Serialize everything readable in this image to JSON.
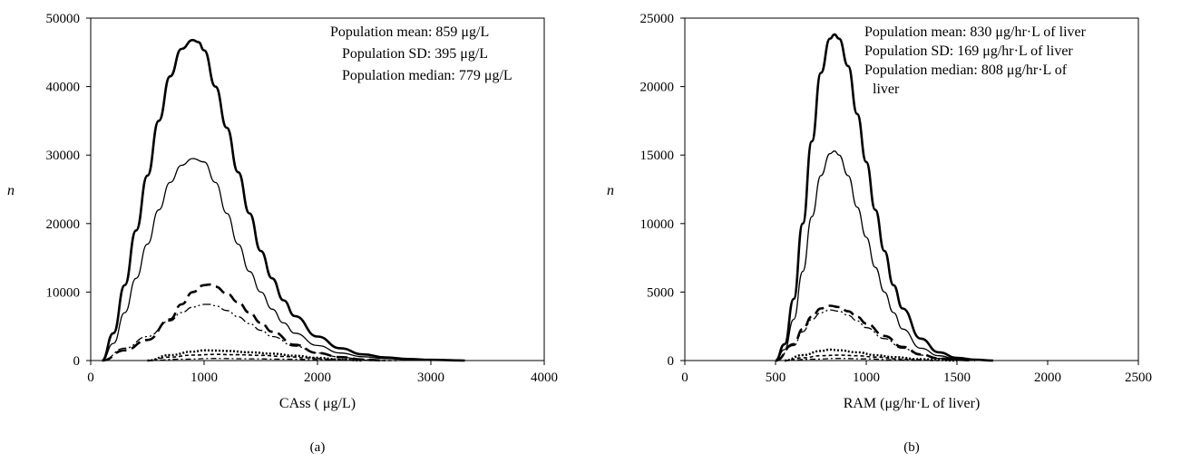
{
  "chart_data": [
    {
      "type": "line",
      "panel_label": "(a)",
      "xlabel": "CAss ( μg/L)",
      "ylabel": "n",
      "xlim": [
        0,
        4000
      ],
      "ylim": [
        0,
        50000
      ],
      "xticks": [
        "0",
        "1000",
        "2000",
        "3000",
        "4000"
      ],
      "yticks": [
        "0",
        "10000",
        "20000",
        "30000",
        "40000",
        "50000"
      ],
      "grid": false,
      "legend": "none",
      "annotations": [
        "Population mean: 859 μg/L",
        "Population SD: 395 μg/L",
        "Population median: 779 μg/L"
      ],
      "series": [
        {
          "style": "thick-solid",
          "x": [
            100,
            200,
            300,
            400,
            500,
            600,
            700,
            800,
            900,
            950,
            1000,
            1100,
            1200,
            1300,
            1400,
            1500,
            1600,
            1700,
            1800,
            2000,
            2200,
            2400,
            2600,
            2800,
            3000,
            3300
          ],
          "y": [
            0,
            4000,
            11000,
            19000,
            27000,
            35000,
            41500,
            45500,
            46800,
            46500,
            45300,
            40000,
            34000,
            27500,
            21500,
            16000,
            12000,
            8800,
            6500,
            3500,
            1800,
            900,
            450,
            220,
            100,
            0
          ]
        },
        {
          "style": "thin-solid",
          "x": [
            100,
            200,
            300,
            400,
            500,
            600,
            700,
            800,
            900,
            1000,
            1100,
            1200,
            1300,
            1400,
            1500,
            1600,
            1700,
            1800,
            2000,
            2200,
            2400,
            2600,
            2800,
            3000,
            3300
          ],
          "y": [
            0,
            2500,
            7000,
            12000,
            17000,
            22000,
            26000,
            28500,
            29500,
            29000,
            26000,
            21500,
            17000,
            13000,
            10000,
            7500,
            5500,
            4000,
            2200,
            1100,
            550,
            280,
            130,
            60,
            0
          ]
        },
        {
          "style": "thick-dash",
          "x": [
            100,
            300,
            500,
            700,
            800,
            900,
            1000,
            1050,
            1100,
            1200,
            1300,
            1400,
            1500,
            1600,
            1800,
            2000,
            2200,
            2400,
            2600
          ],
          "y": [
            0,
            1500,
            3000,
            6000,
            8200,
            10000,
            11000,
            11100,
            10800,
            9800,
            8500,
            7000,
            5500,
            4200,
            2300,
            1100,
            500,
            150,
            0
          ]
        },
        {
          "style": "dash-dot-dot",
          "x": [
            100,
            300,
            500,
            700,
            800,
            900,
            1000,
            1050,
            1100,
            1200,
            1300,
            1400,
            1500,
            1600,
            1800,
            2000,
            2200,
            2400,
            2600
          ],
          "y": [
            0,
            1800,
            3500,
            5800,
            7000,
            7800,
            8200,
            8200,
            8000,
            7300,
            6400,
            5400,
            4400,
            3500,
            2100,
            1100,
            500,
            150,
            0
          ]
        },
        {
          "style": "dense-dot",
          "x": [
            500,
            700,
            900,
            1000,
            1100,
            1200,
            1400,
            1600,
            1800,
            2000,
            2200,
            2400
          ],
          "y": [
            0,
            800,
            1300,
            1500,
            1450,
            1400,
            1200,
            1000,
            700,
            400,
            150,
            0
          ]
        },
        {
          "style": "short-dash",
          "x": [
            500,
            700,
            900,
            1100,
            1300,
            1500,
            1700,
            1900,
            2100,
            2300,
            2500,
            2700
          ],
          "y": [
            0,
            500,
            800,
            900,
            850,
            750,
            600,
            400,
            200,
            100,
            0,
            0
          ]
        },
        {
          "style": "dash-dot",
          "x": [
            500,
            800,
            1100,
            1400,
            1700,
            2000,
            2300,
            2600
          ],
          "y": [
            0,
            200,
            300,
            250,
            200,
            150,
            80,
            0
          ]
        }
      ]
    },
    {
      "type": "line",
      "panel_label": "(b)",
      "xlabel": "RAM (μg/hr·L of liver)",
      "ylabel": "n",
      "xlim": [
        0,
        2500
      ],
      "ylim": [
        0,
        25000
      ],
      "xticks": [
        "0",
        "500",
        "1000",
        "1500",
        "2000",
        "2500"
      ],
      "yticks": [
        "0",
        "5000",
        "10000",
        "15000",
        "20000",
        "25000"
      ],
      "grid": false,
      "legend": "none",
      "annotations": [
        "Population mean: 830 μg/hr·L of liver",
        "Population SD: 169 μg/hr·L of liver",
        "Population median: 808 μg/hr·L of",
        "liver"
      ],
      "series": [
        {
          "style": "thick-solid",
          "x": [
            500,
            550,
            600,
            650,
            700,
            750,
            800,
            825,
            850,
            900,
            950,
            1000,
            1050,
            1100,
            1150,
            1200,
            1300,
            1400,
            1500,
            1600,
            1700
          ],
          "y": [
            0,
            1200,
            4500,
            10000,
            16000,
            21000,
            23500,
            23800,
            23500,
            21500,
            18000,
            14500,
            11000,
            8000,
            5500,
            3800,
            1600,
            600,
            200,
            60,
            0
          ]
        },
        {
          "style": "thin-solid",
          "x": [
            500,
            550,
            600,
            650,
            700,
            750,
            800,
            825,
            850,
            900,
            950,
            1000,
            1050,
            1100,
            1150,
            1200,
            1300,
            1400,
            1500,
            1600,
            1700
          ],
          "y": [
            0,
            800,
            3000,
            6500,
            10500,
            13500,
            15100,
            15300,
            15000,
            13500,
            11200,
            9000,
            6800,
            5000,
            3500,
            2300,
            900,
            350,
            100,
            30,
            0
          ]
        },
        {
          "style": "thick-dash",
          "x": [
            500,
            600,
            650,
            700,
            750,
            800,
            850,
            900,
            950,
            1000,
            1100,
            1200,
            1300,
            1400,
            1500,
            1600
          ],
          "y": [
            0,
            1200,
            2300,
            3200,
            3800,
            4000,
            3900,
            3600,
            3200,
            2700,
            1800,
            1000,
            450,
            150,
            50,
            0
          ]
        },
        {
          "style": "dash-dot-dot",
          "x": [
            500,
            600,
            650,
            700,
            750,
            800,
            850,
            900,
            950,
            1000,
            1100,
            1200,
            1300,
            1400,
            1500,
            1600
          ],
          "y": [
            0,
            1100,
            2100,
            3000,
            3500,
            3700,
            3600,
            3300,
            2900,
            2400,
            1600,
            900,
            400,
            150,
            50,
            0
          ]
        },
        {
          "style": "dense-dot",
          "x": [
            550,
            650,
            750,
            800,
            850,
            950,
            1050,
            1150,
            1300,
            1500
          ],
          "y": [
            0,
            400,
            700,
            800,
            750,
            600,
            400,
            250,
            100,
            0
          ]
        },
        {
          "style": "short-dash",
          "x": [
            550,
            650,
            750,
            850,
            950,
            1050,
            1200,
            1400
          ],
          "y": [
            0,
            200,
            350,
            400,
            350,
            250,
            100,
            0
          ]
        },
        {
          "style": "dash-dot",
          "x": [
            550,
            700,
            850,
            1000,
            1150,
            1300
          ],
          "y": [
            0,
            100,
            150,
            120,
            60,
            0
          ]
        }
      ]
    }
  ]
}
